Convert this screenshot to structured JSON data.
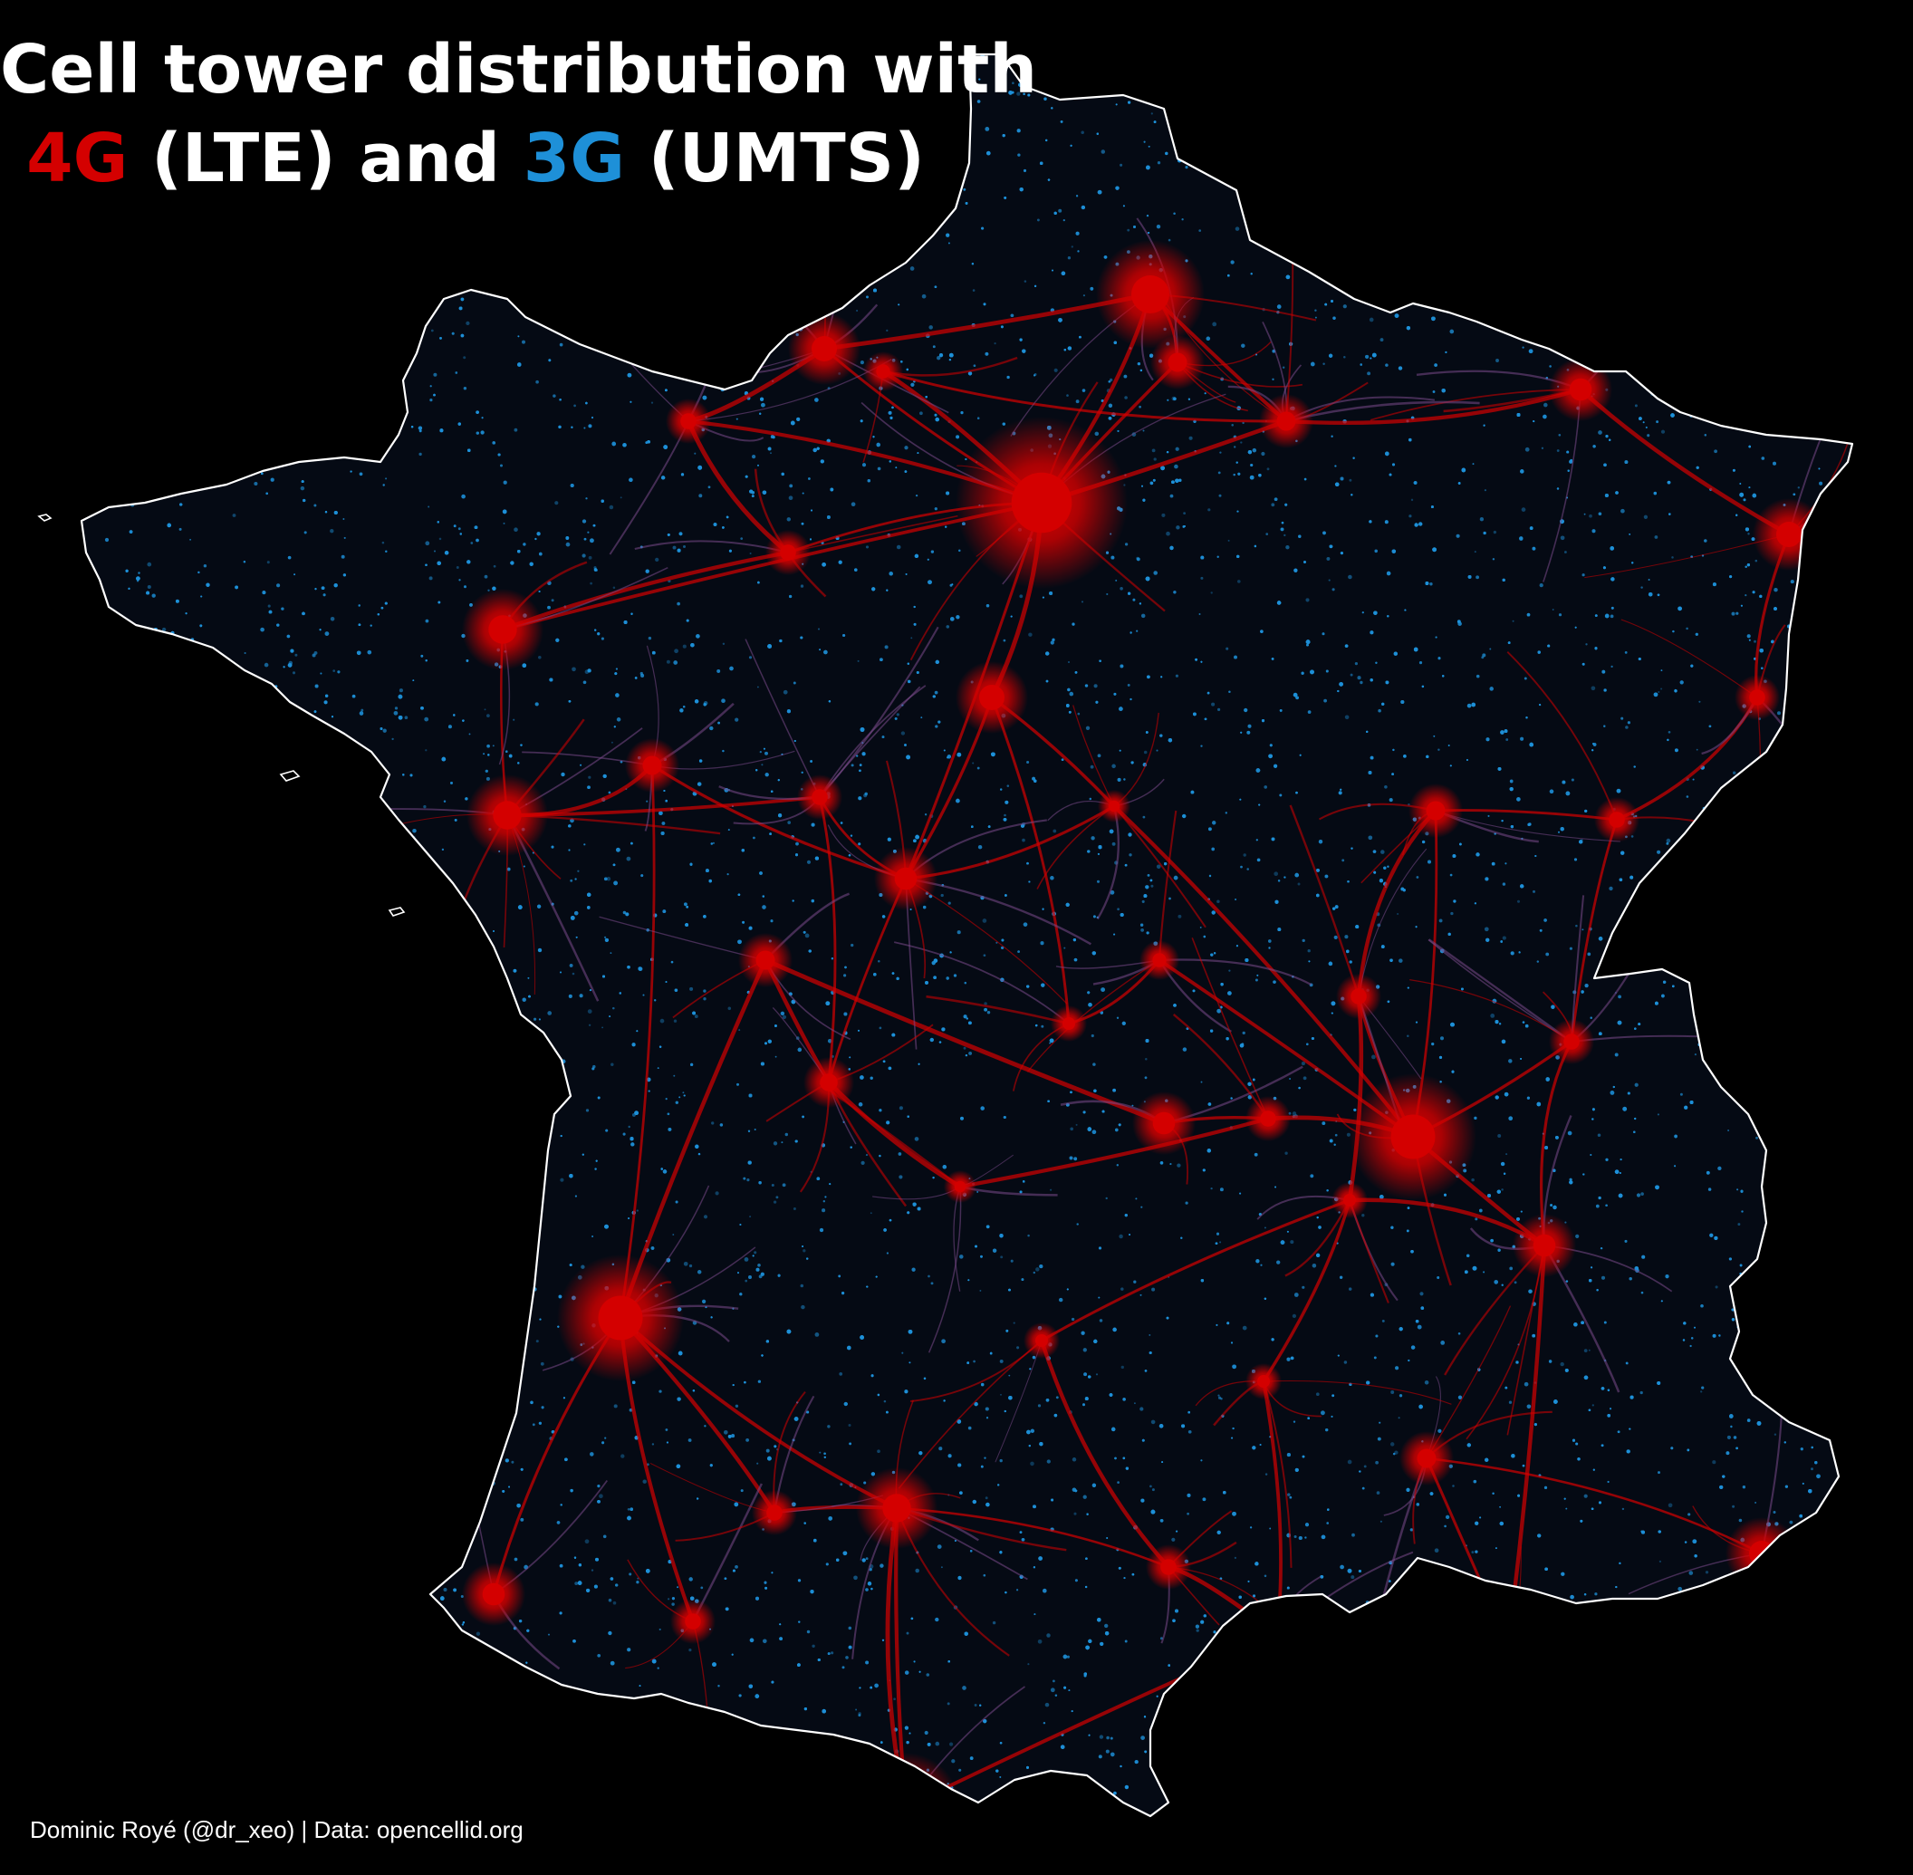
{
  "title": {
    "line1": "Cell tower distribution with",
    "g4_label": "4G",
    "lte_label": " (LTE) and ",
    "g3_label": "3G",
    "umts_label": " (UMTS)"
  },
  "credit": "Dominic Royé (@dr_xeo) | Data: opencellid.org",
  "colors": {
    "background": "#000000",
    "lte_4g": "#d40000",
    "umts_3g": "#1e90d8",
    "border": "#ffffff"
  }
}
